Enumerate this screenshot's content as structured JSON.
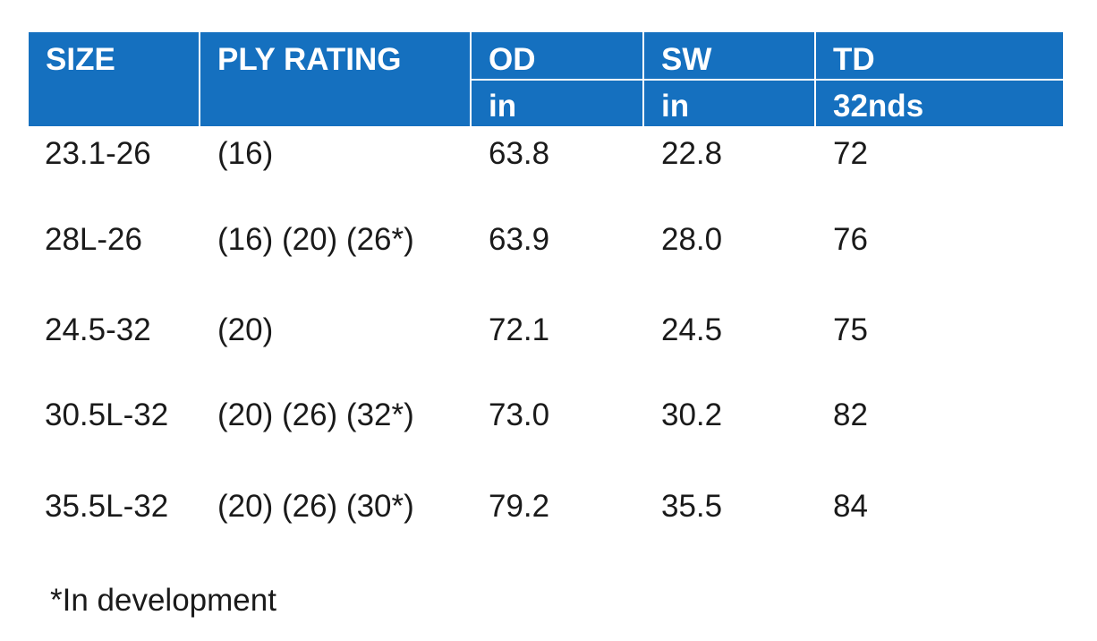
{
  "table": {
    "headers": [
      {
        "label": "SIZE",
        "unit": ""
      },
      {
        "label": "PLY RATING",
        "unit": ""
      },
      {
        "label": "OD",
        "unit": "in"
      },
      {
        "label": "SW",
        "unit": "in"
      },
      {
        "label": "TD",
        "unit": "32nds"
      }
    ],
    "rows": [
      [
        "23.1-26",
        "(16)",
        "63.8",
        "22.8",
        "72"
      ],
      [
        "28L-26",
        "(16) (20) (26*)",
        "63.9",
        "28.0",
        "76"
      ],
      [
        "24.5-32",
        "(20)",
        "72.1",
        "24.5",
        "75"
      ],
      [
        "30.5L-32",
        "(20) (26) (32*)",
        "73.0",
        "30.2",
        "82"
      ],
      [
        "35.5L-32",
        "(20) (26) (30*)",
        "79.2",
        "35.5",
        "84"
      ]
    ]
  },
  "footnote": "*In development",
  "colors": {
    "header_bg": "#1570bf",
    "header_text": "#ffffff",
    "body_text": "#1a1a1a"
  }
}
